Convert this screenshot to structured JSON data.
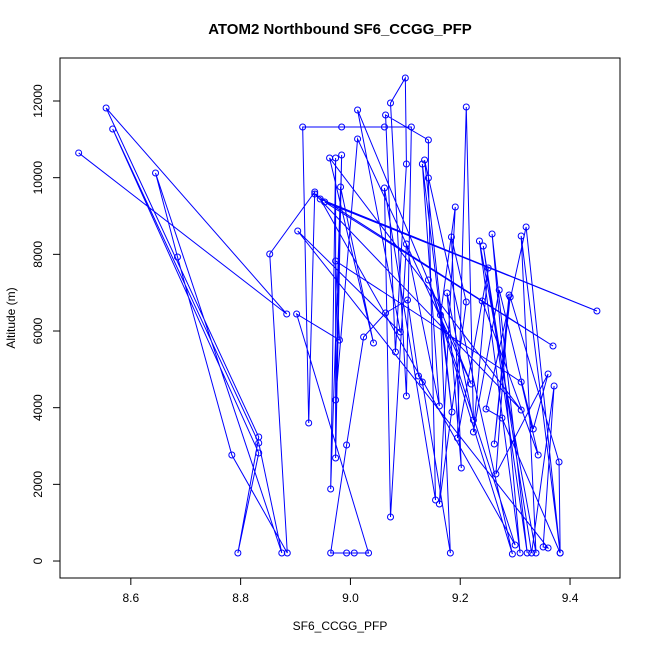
{
  "chart_data": {
    "type": "line",
    "markers": true,
    "title": "ATOM2 Northbound SF6_CCGG_PFP",
    "x_label": "SF6_CCGG_PFP",
    "y_label": "Altitude (m)",
    "color": "#0000ff",
    "xlim": [
      8.471,
      9.491
    ],
    "ylim": [
      -443,
      13122
    ],
    "xticks": [
      8.6,
      8.8,
      {
        "value": 9,
        "label": "9.0"
      },
      9.2,
      9.4
    ],
    "yticks": [
      0,
      2000,
      4000,
      6000,
      8000,
      10000,
      12000
    ],
    "x": [
      8.505,
      8.884,
      8.555,
      8.833,
      8.795,
      8.833,
      8.567,
      8.833,
      8.875,
      8.645,
      8.685,
      8.784,
      8.885,
      8.853,
      8.935,
      8.924,
      8.913,
      8.984,
      9.062,
      9.111,
      9.102,
      9.073,
      9.1,
      9.102,
      9.082,
      9.064,
      9.142,
      9.142,
      9.155,
      9.062,
      9.073,
      9.102,
      9.162,
      9.131,
      9.185,
      9.135,
      9.295,
      9.142,
      9.3,
      8.945,
      9.449,
      8.953,
      9.369,
      8.935,
      9.311,
      8.962,
      9.042,
      8.982,
      8.964,
      8.973,
      8.973,
      8.984,
      8.973,
      9.013,
      9.22,
      9.013,
      9.091,
      8.904,
      9.36,
      9.351,
      9.371,
      9.33,
      9.242,
      9.322,
      9.258,
      9.309,
      9.235,
      9.338,
      9.311,
      9.382,
      9.32,
      9.247,
      9.276,
      9.382,
      9.38,
      9.291,
      9.262,
      9.289,
      9.265,
      9.36,
      9.333,
      9.271,
      9.224,
      9.251,
      9.195,
      9.211,
      9.224,
      9.176,
      9.202,
      9.184,
      9.211,
      9.162,
      9.191,
      9.164,
      9.182,
      9.131,
      9.124,
      9.104,
      9.064,
      9.024,
      8.993,
      8.964,
      8.993,
      9.007,
      9.033,
      8.902,
      8.98,
      8.973,
      9.311,
      9.342,
      9.24
    ],
    "values": [
      10645,
      6444,
      11818,
      3235,
      209,
      2818,
      11270,
      3079,
      209,
      10122,
      7931,
      2765,
      209,
      8009,
      9627,
      3600,
      11323,
      11323,
      11323,
      11323,
      4305,
      11949,
      12601,
      10357,
      5453,
      11636,
      10983,
      9992,
      1591,
      9731,
      1148,
      8270,
      4044,
      10357,
      3887,
      10461,
      183,
      7331,
      417,
      9444,
      6522,
      9366,
      5609,
      9575,
      3939,
      10514,
      5687,
      9758,
      1878,
      10514,
      2687,
      10592,
      4200,
      11010,
      4618,
      11766,
      5975,
      8609,
      339,
      365,
      4566,
      209,
      8218,
      209,
      8531,
      209,
      8348,
      209,
      8479,
      209,
      8714,
      3966,
      3731,
      209,
      2583,
      6888,
      3052,
      6940,
      2270,
      4879,
      3443,
      7070,
      3365,
      7644,
      3209,
      11844,
      3679,
      6992,
      2426,
      8453,
      6757,
      1487,
      9235,
      6418,
      209,
      4670,
      4827,
      6809,
      6470,
      5844,
      3026,
      209,
      209,
      209,
      209,
      6444,
      5766,
      7827,
      4670,
      2765,
      6783
    ]
  }
}
